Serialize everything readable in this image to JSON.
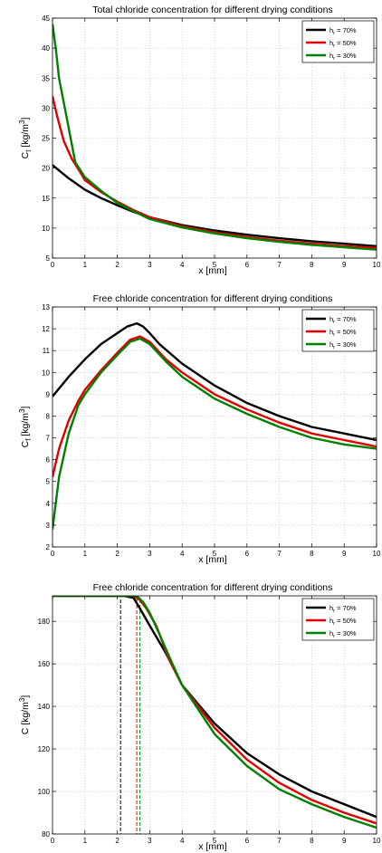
{
  "chart_data": [
    {
      "type": "line",
      "title": "Total chloride concentration for different drying conditions",
      "xlabel": "x [mm]",
      "ylabel": {
        "main": "C",
        "sub": "t",
        "unit_pre": " [kg/m",
        "unit_sup": "3",
        "unit_post": "]"
      },
      "xlim": [
        0,
        10
      ],
      "ylim": [
        5,
        45
      ],
      "xticks": [
        0,
        1,
        2,
        3,
        4,
        5,
        6,
        7,
        8,
        9,
        10
      ],
      "yticks": [
        5,
        10,
        15,
        20,
        25,
        30,
        35,
        40,
        45
      ],
      "grid": true,
      "legend_position": "top-right",
      "series": [
        {
          "name": "h_r = 70%",
          "legend_main": "h",
          "legend_sub": "r",
          "legend_rest": " = 70%",
          "color": "#000000",
          "x": [
            0,
            0.5,
            1,
            1.5,
            2,
            2.5,
            3,
            4,
            5,
            6,
            7,
            8,
            9,
            10
          ],
          "y": [
            20.5,
            18.3,
            16.4,
            15.0,
            13.8,
            12.7,
            11.8,
            10.5,
            9.6,
            8.9,
            8.3,
            7.8,
            7.4,
            7.0
          ]
        },
        {
          "name": "h_r = 50%",
          "legend_main": "h",
          "legend_sub": "r",
          "legend_rest": " = 50%",
          "color": "#e00000",
          "x": [
            0,
            0.15,
            0.35,
            0.6,
            0.8,
            1,
            1.5,
            2,
            2.5,
            3,
            4,
            5,
            6,
            7,
            8,
            9,
            10
          ],
          "y": [
            32.0,
            28.5,
            24.5,
            21.5,
            19.8,
            18.0,
            16.0,
            14.4,
            13.0,
            11.8,
            10.3,
            9.3,
            8.5,
            7.9,
            7.4,
            7.0,
            6.7
          ]
        },
        {
          "name": "h_r = 30%",
          "legend_main": "h",
          "legend_sub": "r",
          "legend_rest": " = 30%",
          "color": "#008000",
          "x": [
            0,
            0.1,
            0.2,
            0.4,
            0.7,
            1,
            1.5,
            2,
            2.5,
            3,
            4,
            5,
            6,
            7,
            8,
            9,
            10
          ],
          "y": [
            44.0,
            40.0,
            35.0,
            29.5,
            21.0,
            18.5,
            16.2,
            14.2,
            12.8,
            11.5,
            10.1,
            9.1,
            8.3,
            7.7,
            7.2,
            6.8,
            6.4
          ]
        }
      ],
      "vlines": []
    },
    {
      "type": "line",
      "title": "Free chloride concentration for different drying conditions",
      "xlabel": "x [mm]",
      "ylabel": {
        "main": "C",
        "sub": "f",
        "unit_pre": " [kg/m",
        "unit_sup": "3",
        "unit_post": "]"
      },
      "xlim": [
        0,
        10
      ],
      "ylim": [
        2,
        13
      ],
      "xticks": [
        0,
        1,
        2,
        3,
        4,
        5,
        6,
        7,
        8,
        9,
        10
      ],
      "yticks": [
        2,
        3,
        4,
        5,
        6,
        7,
        8,
        9,
        10,
        11,
        12,
        13
      ],
      "grid": true,
      "legend_position": "top-right",
      "series": [
        {
          "name": "h_r = 70%",
          "legend_main": "h",
          "legend_sub": "r",
          "legend_rest": " = 70%",
          "color": "#000000",
          "x": [
            0,
            0.5,
            1,
            1.5,
            2,
            2.3,
            2.6,
            2.8,
            3.0,
            3.3,
            4,
            5,
            6,
            7,
            8,
            9,
            10
          ],
          "y": [
            8.9,
            9.8,
            10.6,
            11.3,
            11.8,
            12.1,
            12.25,
            12.1,
            11.8,
            11.3,
            10.4,
            9.4,
            8.6,
            8.0,
            7.5,
            7.2,
            6.9
          ]
        },
        {
          "name": "h_r = 50%",
          "legend_main": "h",
          "legend_sub": "r",
          "legend_rest": " = 50%",
          "color": "#e00000",
          "x": [
            0,
            0.2,
            0.5,
            0.8,
            1,
            1.5,
            2,
            2.4,
            2.7,
            3.0,
            3.5,
            4,
            5,
            6,
            7,
            8,
            9,
            10
          ],
          "y": [
            5.2,
            6.5,
            7.8,
            8.7,
            9.2,
            10.1,
            10.9,
            11.5,
            11.65,
            11.4,
            10.6,
            10.0,
            9.0,
            8.3,
            7.7,
            7.2,
            6.9,
            6.6
          ]
        },
        {
          "name": "h_r = 30%",
          "legend_main": "h",
          "legend_sub": "r",
          "legend_rest": " = 30%",
          "color": "#008000",
          "x": [
            0,
            0.2,
            0.5,
            0.8,
            1,
            1.5,
            2,
            2.4,
            2.7,
            3.0,
            3.5,
            4,
            5,
            6,
            7,
            8,
            9,
            10
          ],
          "y": [
            2.8,
            5.2,
            7.2,
            8.5,
            9.0,
            10.0,
            10.8,
            11.4,
            11.55,
            11.3,
            10.5,
            9.8,
            8.8,
            8.1,
            7.5,
            7.0,
            6.7,
            6.5
          ]
        }
      ],
      "vlines": []
    },
    {
      "type": "line",
      "title": "Free chloride concentration for different drying conditions",
      "xlabel": "x [mm]",
      "ylabel": {
        "main": "C",
        "sub": "",
        "unit_pre": " [kg/m",
        "unit_sup": "3",
        "unit_post": "]"
      },
      "xlim": [
        0,
        10
      ],
      "ylim": [
        80,
        192
      ],
      "xticks": [
        0,
        1,
        2,
        3,
        4,
        5,
        6,
        7,
        8,
        9,
        10
      ],
      "yticks": [
        80,
        100,
        120,
        140,
        160,
        180
      ],
      "grid": true,
      "legend_position": "top-right",
      "series": [
        {
          "name": "h_r = 70%",
          "legend_main": "h",
          "legend_sub": "r",
          "legend_rest": " = 70%",
          "color": "#000000",
          "x": [
            0,
            2.2,
            2.5,
            2.7,
            3.0,
            3.5,
            4,
            5,
            6,
            7,
            8,
            9,
            10
          ],
          "y": [
            192,
            192,
            191,
            186,
            178,
            165,
            150,
            132,
            118,
            108,
            100,
            94,
            88
          ]
        },
        {
          "name": "h_r = 50%",
          "legend_main": "h",
          "legend_sub": "r",
          "legend_rest": " = 50%",
          "color": "#e00000",
          "x": [
            0,
            2.5,
            2.7,
            2.9,
            3.2,
            3.6,
            4,
            5,
            6,
            7,
            8,
            9,
            10
          ],
          "y": [
            192,
            192,
            190,
            186,
            178,
            162,
            150,
            130,
            115,
            104,
            96,
            90,
            85
          ]
        },
        {
          "name": "h_r = 30%",
          "legend_main": "h",
          "legend_sub": "r",
          "legend_rest": " = 30%",
          "color": "#008000",
          "x": [
            0,
            2.6,
            2.8,
            3.0,
            3.3,
            3.7,
            4,
            5,
            6,
            7,
            8,
            9,
            10
          ],
          "y": [
            192,
            192,
            189,
            184,
            174,
            160,
            150,
            127,
            112,
            101,
            94,
            88,
            83
          ]
        }
      ],
      "vlines": [
        {
          "x": 2.1,
          "color": "#000000"
        },
        {
          "x": 2.6,
          "color": "#e00000"
        },
        {
          "x": 2.7,
          "color": "#008000"
        }
      ]
    }
  ]
}
